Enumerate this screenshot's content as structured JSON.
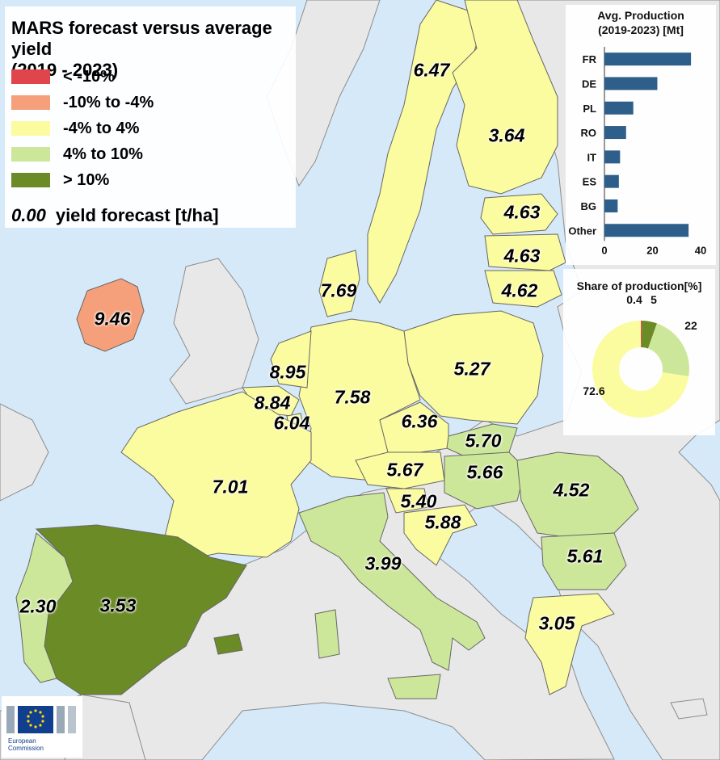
{
  "legend": {
    "title_line1": "MARS forecast versus average yield",
    "title_line2": "(2019 - 2023)",
    "classes": [
      {
        "label": "< -10%",
        "color": "#e0454c"
      },
      {
        "label": "-10% to -4%",
        "color": "#f5a07a"
      },
      {
        "label": "-4% to 4%",
        "color": "#fbfb9f"
      },
      {
        "label": "4% to 10%",
        "color": "#cde79a"
      },
      {
        "label": "> 10%",
        "color": "#6b8b27"
      }
    ],
    "yield_example": "0.00",
    "yield_label": "yield forecast [t/ha]"
  },
  "map_labels": [
    {
      "value": "6.47"
    },
    {
      "value": "3.64"
    },
    {
      "value": "4.63"
    },
    {
      "value": "4.63"
    },
    {
      "value": "4.62"
    },
    {
      "value": "7.69"
    },
    {
      "value": "9.46"
    },
    {
      "value": "8.95"
    },
    {
      "value": "7.58"
    },
    {
      "value": "5.27"
    },
    {
      "value": "8.84"
    },
    {
      "value": "6.04"
    },
    {
      "value": "6.36"
    },
    {
      "value": "5.70"
    },
    {
      "value": "5.67"
    },
    {
      "value": "5.66"
    },
    {
      "value": "7.01"
    },
    {
      "value": "4.52"
    },
    {
      "value": "5.40"
    },
    {
      "value": "5.88"
    },
    {
      "value": "3.99"
    },
    {
      "value": "5.61"
    },
    {
      "value": "2.30"
    },
    {
      "value": "3.53"
    },
    {
      "value": "3.05"
    }
  ],
  "chart_data": [
    {
      "type": "bar",
      "title": "Avg. Production (2019-2023) [Mt]",
      "categories": [
        "FR",
        "DE",
        "PL",
        "RO",
        "IT",
        "ES",
        "BG",
        "Other"
      ],
      "values": [
        36,
        22,
        12,
        9,
        6.5,
        6,
        5.5,
        35
      ],
      "xlim": [
        0,
        40
      ],
      "ticks": [
        "0",
        "20",
        "40"
      ],
      "color": "#2e5f8a"
    },
    {
      "type": "pie",
      "title": "Share of production[%]",
      "values": [
        0.4,
        5,
        22,
        72.6
      ],
      "labels": [
        "0.4",
        "5",
        "22",
        "72.6"
      ],
      "colors": [
        "#e0454c",
        "#6b8b27",
        "#cde79a",
        "#fbfb9f"
      ]
    }
  ],
  "logo": {
    "line1": "European",
    "line2": "Commission"
  }
}
